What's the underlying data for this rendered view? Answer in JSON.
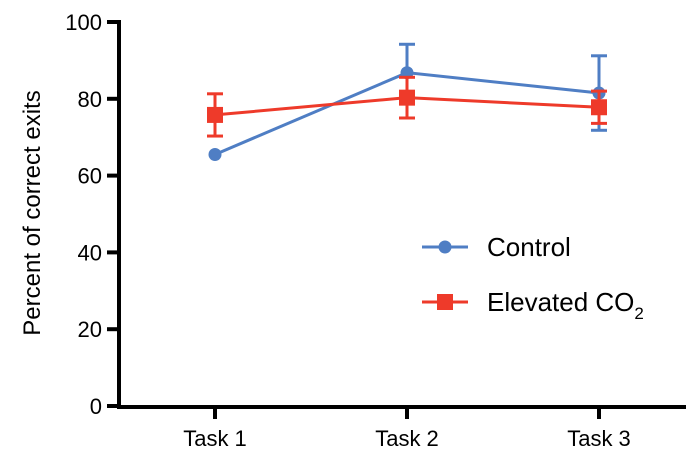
{
  "chart_data": {
    "type": "line",
    "title": "",
    "xlabel": "",
    "ylabel": "Percent of correct exits",
    "categories": [
      "Task 1",
      "Task 2",
      "Task 3"
    ],
    "ylim": [
      0,
      100
    ],
    "yticks": [
      0,
      20,
      40,
      60,
      80,
      100
    ],
    "grid": false,
    "legend_position": "center-right",
    "series": [
      {
        "name": "Control",
        "marker": "circle",
        "color": "#4f7ec4",
        "values": [
          65.5,
          86.8,
          81.5
        ],
        "error_low": [
          65.5,
          79.5,
          71.8
        ],
        "error_high": [
          65.5,
          94.2,
          91.2
        ]
      },
      {
        "name": "Elevated CO",
        "name_subscript": "2",
        "marker": "square",
        "color": "#ee3a2a",
        "values": [
          75.8,
          80.3,
          77.8
        ],
        "error_low": [
          70.3,
          75.0,
          73.6
        ],
        "error_high": [
          81.3,
          85.6,
          82.0
        ]
      }
    ]
  }
}
